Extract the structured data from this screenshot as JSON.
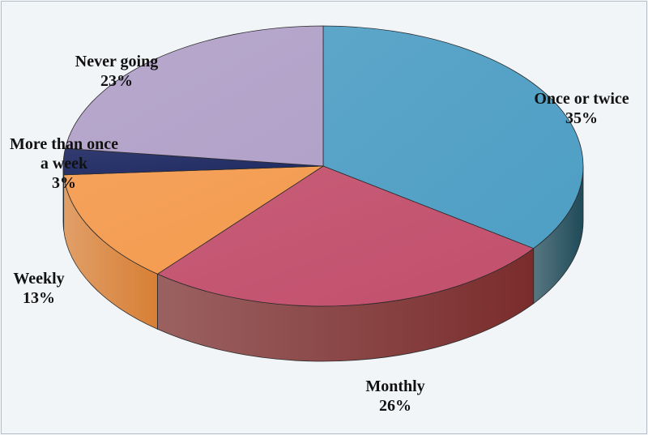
{
  "chart_data": {
    "type": "pie",
    "title": "",
    "slices": [
      {
        "label": "Once or twice",
        "value": 35,
        "value_label": "35%",
        "color": "#4e9ec4",
        "side_color": "#1f4a58"
      },
      {
        "label": "Monthly",
        "value": 26,
        "value_label": "26%",
        "color": "#c24f6c",
        "side_color": "#7a2c2c"
      },
      {
        "label": "Weekly",
        "value": 13,
        "value_label": "13%",
        "color": "#f49a4e",
        "side_color": "#d77f35"
      },
      {
        "label": "More than once a week",
        "label_lines": [
          "More than once",
          "a week"
        ],
        "value": 3,
        "value_label": "3%",
        "color": "#1f2a63",
        "side_color": "#141a40"
      },
      {
        "label": "Never going",
        "value": 23,
        "value_label": "23%",
        "color": "#b2a1c9",
        "side_color": "#7e6f93"
      }
    ],
    "legend": "none",
    "style": "3d-exploded-none"
  }
}
